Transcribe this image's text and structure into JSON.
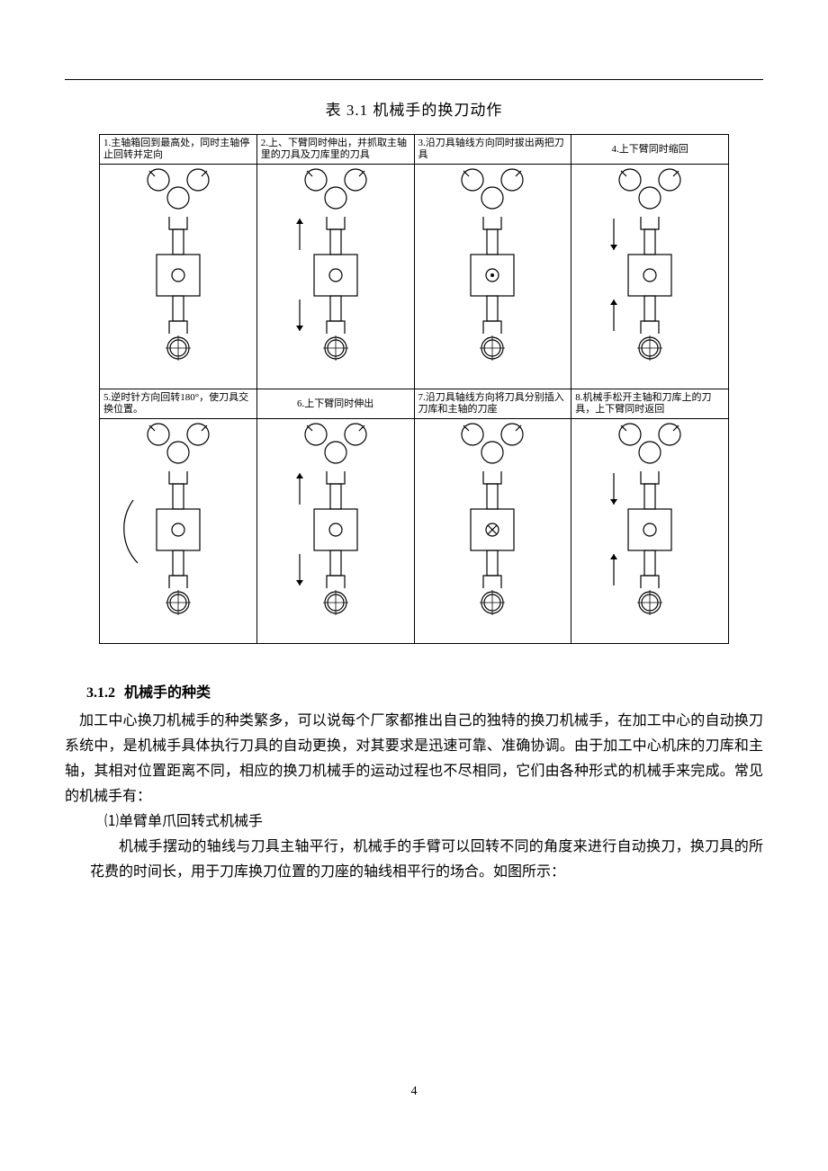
{
  "caption": "表 3.1    机械手的换刀动作",
  "steps": [
    {
      "label": "1.主轴箱回到最高处，同时主轴停止回转并定向",
      "center_mark": "circle",
      "arrows": "none",
      "arc": false
    },
    {
      "label": "2.上、下臂同时伸出，并抓取主轴里的刀具及刀库里的刀具",
      "center_mark": "circle",
      "arrows": "out",
      "arc": false
    },
    {
      "label": "3.沿刀具轴线方向同时拔出两把刀具",
      "center_mark": "dot",
      "arrows": "none",
      "arc": false
    },
    {
      "label": "4.上下臂同时缩回",
      "center_mark": "circle",
      "arrows": "in",
      "arc": false
    },
    {
      "label": "5.逆时针方向回转180°，使刀具交换位置。",
      "center_mark": "circle",
      "arrows": "none",
      "arc": true
    },
    {
      "label": "6.上下臂同时伸出",
      "center_mark": "circle",
      "arrows": "out",
      "arc": false
    },
    {
      "label": "7.沿刀具轴线方向将刀具分别插入刀库和主轴的刀座",
      "center_mark": "cross",
      "arrows": "none",
      "arc": false
    },
    {
      "label": "8.机械手松开主轴和刀库上的刀具，上下臂同时返回",
      "center_mark": "circle",
      "arrows": "in",
      "arc": false
    }
  ],
  "section": {
    "number": "3.1.2",
    "title": "机械手的种类",
    "para1": "加工中心换刀机械手的种类繁多，可以说每个厂家都推出自己的独特的换刀机械手，在加工中心的自动换刀系统中，是机械手具体执行刀具的自动更换，对其要求是迅速可靠、准确协调。由于加工中心机床的刀库和主轴，其相对位置距离不同，相应的换刀机械手的运动过程也不尽相同，它们由各种形式的机械手来完成。常见的机械手有：",
    "item1_label": "⑴单臂单爪回转式机械手",
    "para2": "机械手摆动的轴线与刀具主轴平行，机械手的手臂可以回转不同的角度来进行自动换刀，换刀具的所花费的时间长，用于刀库换刀位置的刀座的轴线相平行的场合。如图所示："
  },
  "page_number": "4",
  "colors": {
    "stroke": "#000000",
    "bg": "#ffffff"
  }
}
